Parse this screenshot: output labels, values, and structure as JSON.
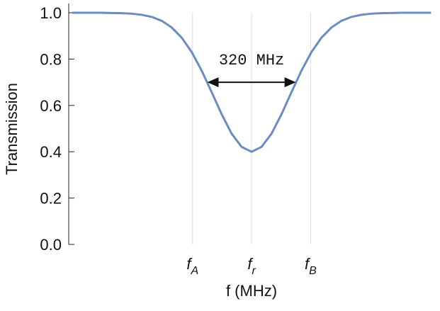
{
  "chart_data": {
    "type": "line",
    "xlabel": "f (MHz)",
    "ylabel": "Transmission",
    "x": [
      -648,
      -612,
      -576,
      -540,
      -504,
      -468,
      -432,
      -396,
      -360,
      -324,
      -288,
      -252,
      -216,
      -180,
      -144,
      -108,
      -72,
      -36,
      0,
      36,
      72,
      108,
      144,
      180,
      216,
      252,
      288,
      324,
      360,
      396,
      432,
      468,
      504,
      540,
      576,
      612,
      648
    ],
    "series": [
      {
        "color": "#6b8cc0",
        "values": [
          1.0,
          1.0,
          1.0,
          1.0,
          0.999,
          0.998,
          0.996,
          0.991,
          0.982,
          0.965,
          0.936,
          0.892,
          0.83,
          0.75,
          0.657,
          0.562,
          0.478,
          0.421,
          0.4,
          0.421,
          0.478,
          0.562,
          0.657,
          0.75,
          0.83,
          0.892,
          0.936,
          0.965,
          0.982,
          0.991,
          0.996,
          0.998,
          0.999,
          1.0,
          1.0,
          1.0,
          1.0
        ]
      }
    ],
    "xlim": [
      -660,
      675
    ],
    "ylim": [
      0,
      1
    ],
    "xticks": [
      {
        "value": -213,
        "label": "f",
        "subscript": "A"
      },
      {
        "value": 0,
        "label": "f",
        "subscript": "r"
      },
      {
        "value": 213,
        "label": "f",
        "subscript": "B"
      }
    ],
    "yticks": [
      {
        "value": 0,
        "label": "0.0"
      },
      0.2,
      0.4,
      0.6,
      0.8,
      {
        "value": 1,
        "label": "1.0"
      }
    ],
    "grid_x": true,
    "annotation": {
      "text": "320 MHz",
      "x": [
        -160,
        160
      ],
      "y": 0.7
    }
  }
}
